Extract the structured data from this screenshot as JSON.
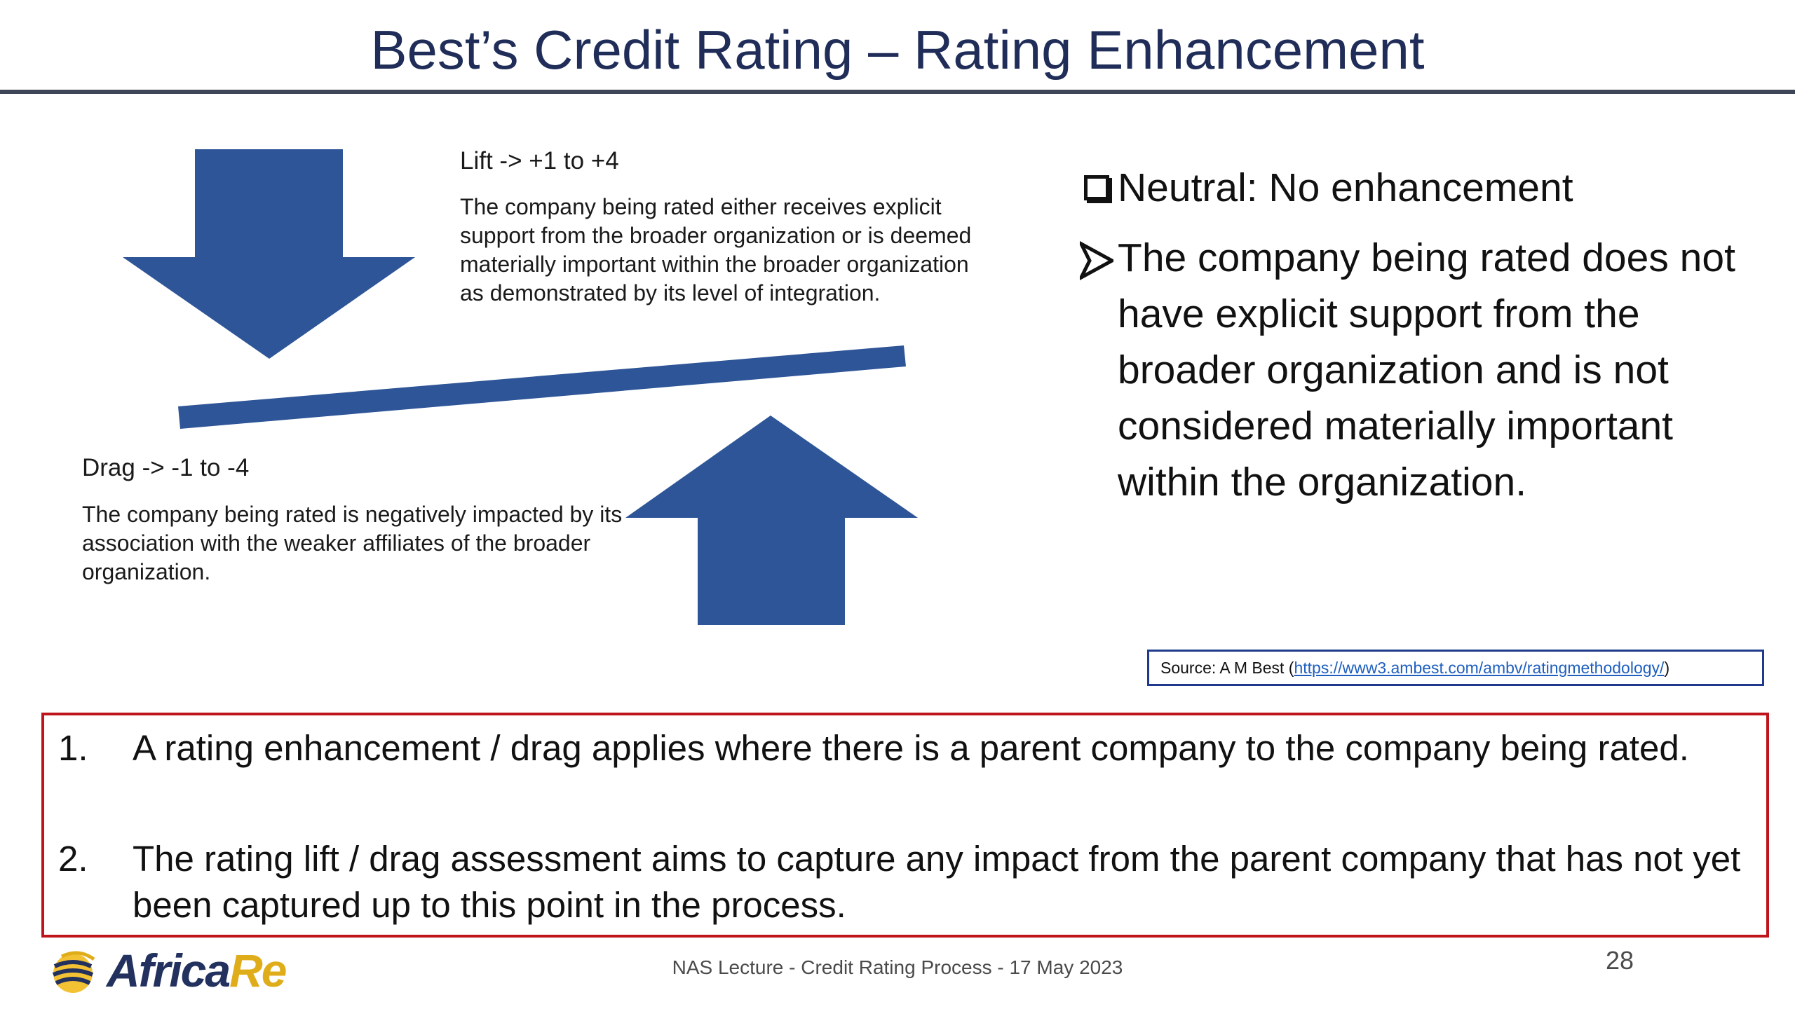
{
  "slide": {
    "title": "Best’s Credit Rating – Rating Enhancement",
    "accent_color": "#2e5597",
    "title_color": "#1f2d58",
    "notes_border_color": "#c0141c"
  },
  "diagram": {
    "lift": {
      "heading": "Lift -> +1 to +4",
      "description": "The company being rated either receives explicit support from the broader organization or is deemed materially important within the broader organization as demonstrated by its level of integration."
    },
    "drag": {
      "heading": "Drag -> -1 to -4",
      "description": "The company being rated is negatively impacted by its association with the weaker affiliates of the broader organization."
    },
    "icons": [
      "arrow-down-icon",
      "arrow-up-icon"
    ]
  },
  "neutral": {
    "heading": "Neutral: No enhancement",
    "point": "The company being rated does not have explicit support from the broader organization and is not considered materially important within the organization.",
    "icons": [
      "checkbox-icon",
      "arrowhead-bullet-icon"
    ]
  },
  "source": {
    "prefix": "Source: A M Best (",
    "link_text": "https://www3.ambest.com/ambv/ratingmethodology/",
    "suffix": ")"
  },
  "notes": [
    {
      "number": "1.",
      "text": "A rating enhancement / drag applies where there is a parent company to the company being rated."
    },
    {
      "number": "2.",
      "text": "The rating lift / drag assessment aims to capture any impact from the parent company that has not yet been captured up to this point in the process."
    }
  ],
  "footer": {
    "logo_africa": "Africa",
    "logo_re": "Re",
    "text": "NAS Lecture - Credit Rating Process - 17 May 2023",
    "page_number": "28"
  }
}
